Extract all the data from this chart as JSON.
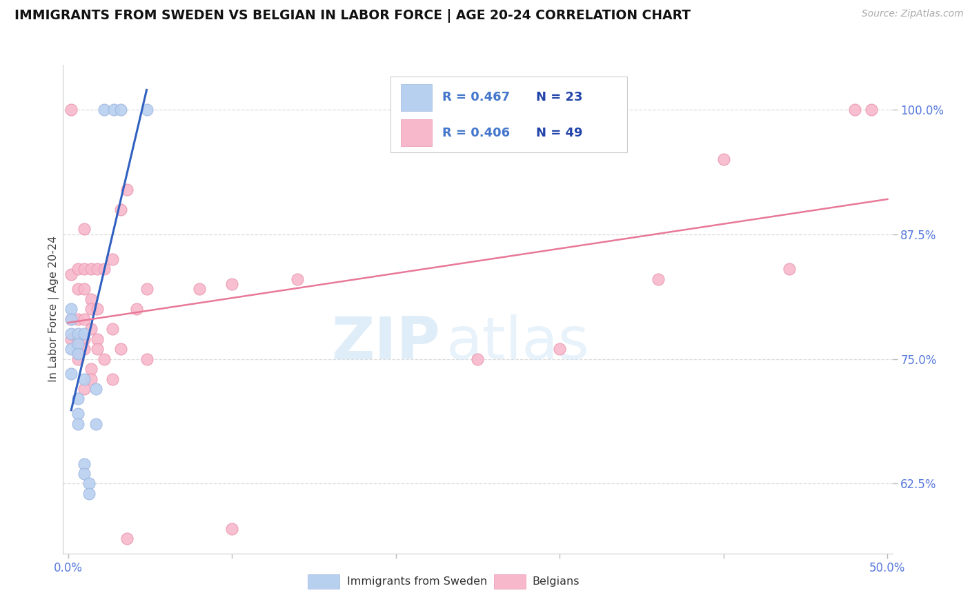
{
  "title": "IMMIGRANTS FROM SWEDEN VS BELGIAN IN LABOR FORCE | AGE 20-24 CORRELATION CHART",
  "source_text": "Source: ZipAtlas.com",
  "ylabel": "In Labor Force | Age 20-24",
  "ytick_labels": [
    "100.0%",
    "87.5%",
    "75.0%",
    "62.5%"
  ],
  "ytick_values": [
    1.0,
    0.875,
    0.75,
    0.625
  ],
  "xlim": [
    -0.003,
    0.503
  ],
  "ylim": [
    0.555,
    1.045
  ],
  "legend_sweden_r": "R = 0.467",
  "legend_sweden_n": "N = 23",
  "legend_belgian_r": "R = 0.406",
  "legend_belgian_n": "N = 49",
  "sweden_fill_color": "#b8d0f0",
  "belgian_fill_color": "#f8b8cc",
  "sweden_edge_color": "#a0b8e0",
  "belgian_edge_color": "#e898b0",
  "sweden_line_color": "#3060c0",
  "belgian_line_color": "#e87898",
  "r_text_color": "#4477cc",
  "n_text_color": "#2244aa",
  "axis_tick_color": "#5577dd",
  "title_color": "#111111",
  "source_color": "#aaaaaa",
  "grid_color": "#dddddd",
  "sweden_points_x": [
    0.002,
    0.002,
    0.002,
    0.002,
    0.002,
    0.006,
    0.006,
    0.006,
    0.006,
    0.006,
    0.006,
    0.01,
    0.01,
    0.01,
    0.01,
    0.013,
    0.013,
    0.017,
    0.017,
    0.022,
    0.028,
    0.032,
    0.048
  ],
  "sweden_points_y": [
    0.8,
    0.79,
    0.775,
    0.76,
    0.735,
    0.775,
    0.765,
    0.755,
    0.71,
    0.695,
    0.685,
    0.775,
    0.73,
    0.645,
    0.635,
    0.625,
    0.615,
    0.72,
    0.685,
    1.0,
    1.0,
    1.0,
    1.0
  ],
  "belgian_points_x": [
    0.002,
    0.002,
    0.002,
    0.002,
    0.006,
    0.006,
    0.006,
    0.006,
    0.006,
    0.01,
    0.01,
    0.01,
    0.01,
    0.01,
    0.01,
    0.01,
    0.014,
    0.014,
    0.014,
    0.014,
    0.014,
    0.014,
    0.018,
    0.018,
    0.018,
    0.018,
    0.022,
    0.022,
    0.027,
    0.027,
    0.027,
    0.032,
    0.032,
    0.036,
    0.036,
    0.042,
    0.048,
    0.048,
    0.08,
    0.1,
    0.1,
    0.14,
    0.25,
    0.3,
    0.36,
    0.4,
    0.44,
    0.48,
    0.49
  ],
  "belgian_points_y": [
    1.0,
    0.835,
    0.79,
    0.77,
    0.84,
    0.82,
    0.79,
    0.77,
    0.75,
    0.88,
    0.84,
    0.82,
    0.79,
    0.77,
    0.76,
    0.72,
    0.84,
    0.81,
    0.8,
    0.78,
    0.74,
    0.73,
    0.84,
    0.8,
    0.77,
    0.76,
    0.84,
    0.75,
    0.85,
    0.78,
    0.73,
    0.9,
    0.76,
    0.92,
    0.57,
    0.8,
    0.82,
    0.75,
    0.82,
    0.825,
    0.58,
    0.83,
    0.75,
    0.76,
    0.83,
    0.95,
    0.84,
    1.0,
    1.0
  ]
}
